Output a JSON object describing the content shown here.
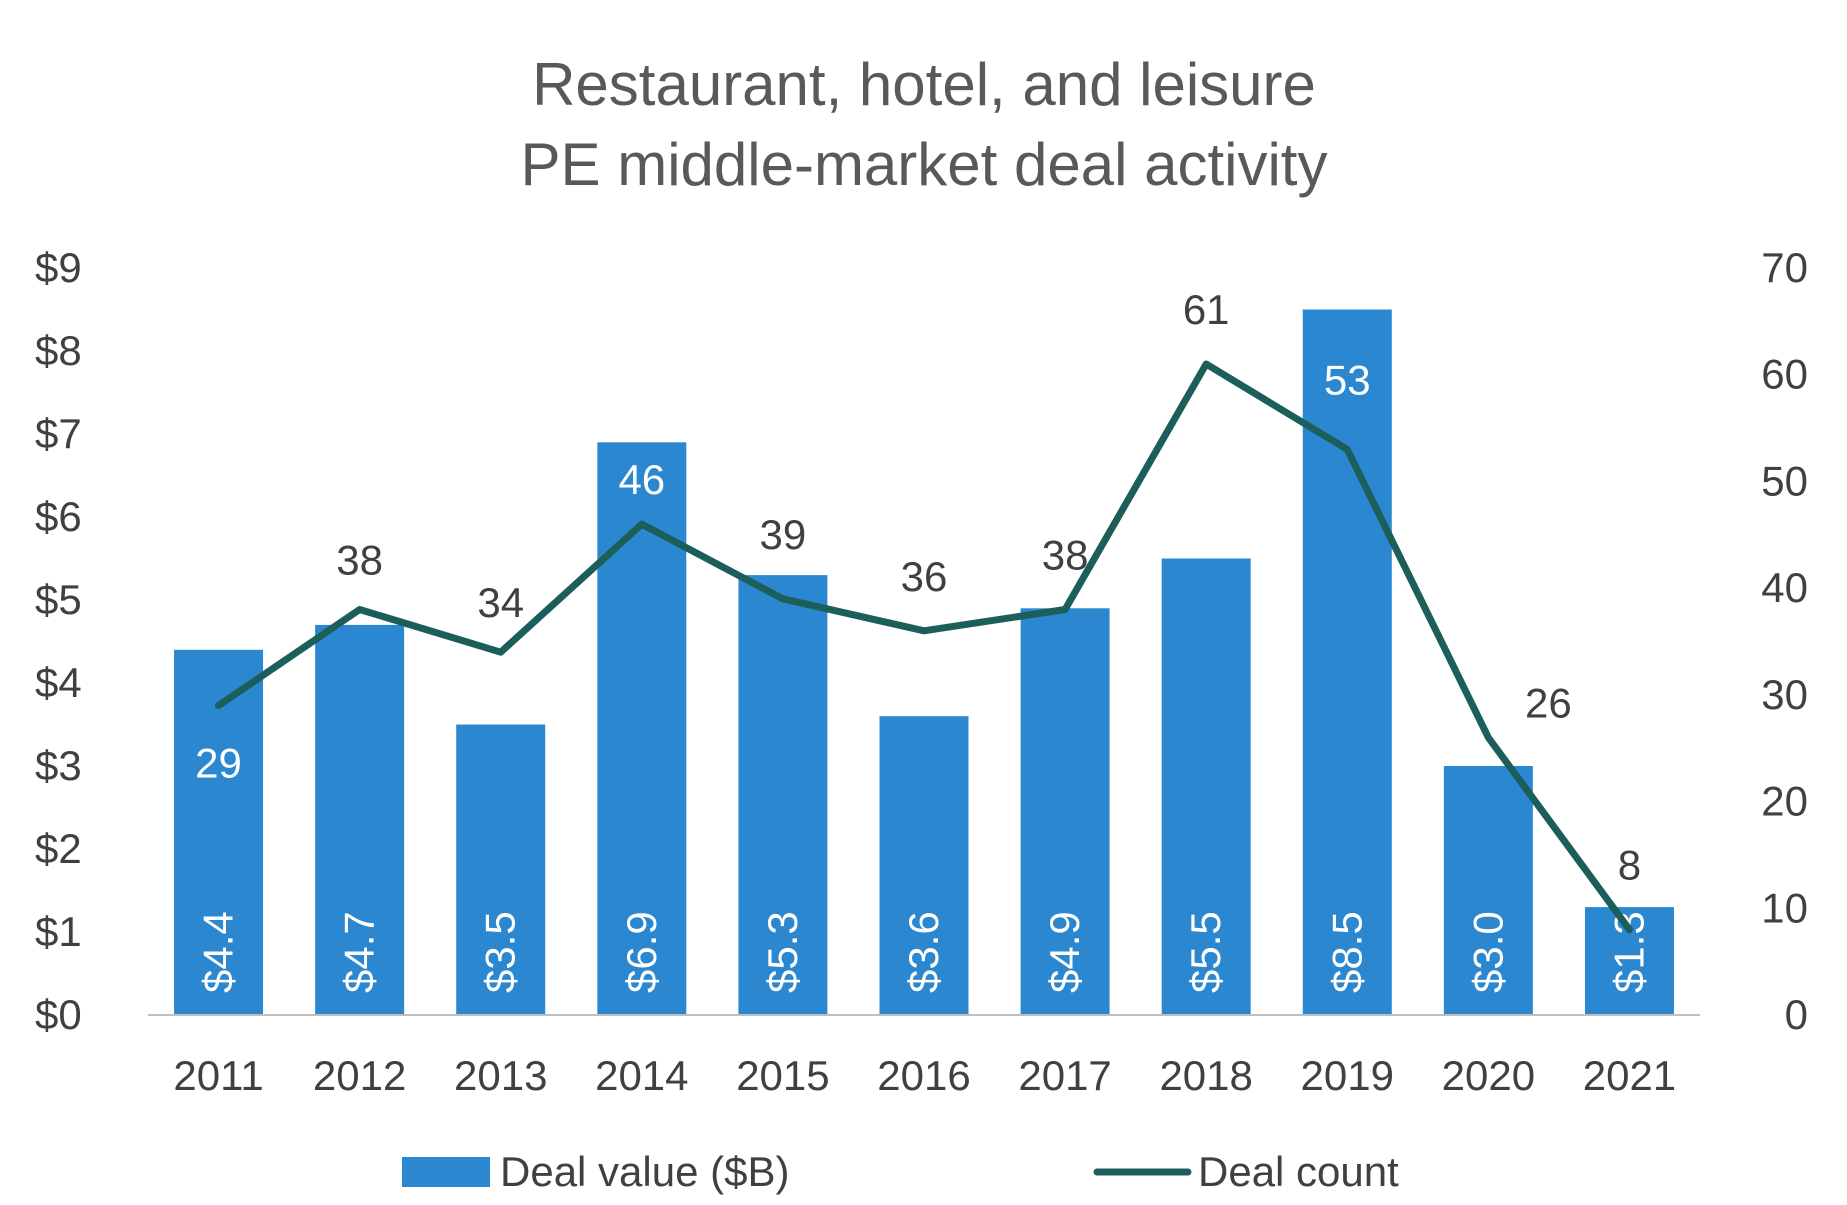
{
  "chart_data": {
    "type": "bar",
    "title_lines": [
      "Restaurant, hotel, and leisure",
      "PE middle-market deal activity"
    ],
    "categories": [
      "2011",
      "2012",
      "2013",
      "2014",
      "2015",
      "2016",
      "2017",
      "2018",
      "2019",
      "2020",
      "2021"
    ],
    "series": [
      {
        "name": "Deal value ($B)",
        "type": "bar",
        "axis": "left",
        "values": [
          4.4,
          4.7,
          3.5,
          6.9,
          5.3,
          3.6,
          4.9,
          5.5,
          8.5,
          3.0,
          1.3
        ],
        "labels": [
          "$4.4",
          "$4.7",
          "$3.5",
          "$6.9",
          "$5.3",
          "$3.6",
          "$4.9",
          "$5.5",
          "$8.5",
          "$3.0",
          "$1.3"
        ],
        "color": "#2b88d0"
      },
      {
        "name": "Deal count",
        "type": "line",
        "axis": "right",
        "values": [
          29,
          38,
          34,
          46,
          39,
          36,
          38,
          61,
          53,
          26,
          8
        ],
        "labels": [
          "29",
          "38",
          "34",
          "46",
          "39",
          "36",
          "38",
          "61",
          "53",
          "26",
          "8"
        ],
        "color": "#1b5e5a"
      }
    ],
    "y_left": {
      "ylim": [
        0,
        9
      ],
      "ticks": [
        0,
        1,
        2,
        3,
        4,
        5,
        6,
        7,
        8,
        9
      ],
      "tick_labels": [
        "$0",
        "$1",
        "$2",
        "$3",
        "$4",
        "$5",
        "$6",
        "$7",
        "$8",
        "$9"
      ]
    },
    "y_right": {
      "ylim": [
        0,
        70
      ],
      "ticks": [
        0,
        10,
        20,
        30,
        40,
        50,
        60,
        70
      ],
      "tick_labels": [
        "0",
        "10",
        "20",
        "30",
        "40",
        "50",
        "60",
        "70"
      ]
    },
    "grid": false,
    "legend_position": "bottom",
    "colors": {
      "text": "#404040",
      "title": "#595959",
      "axis_line": "#bfbfbf",
      "bar_label": "#ffffff"
    }
  }
}
